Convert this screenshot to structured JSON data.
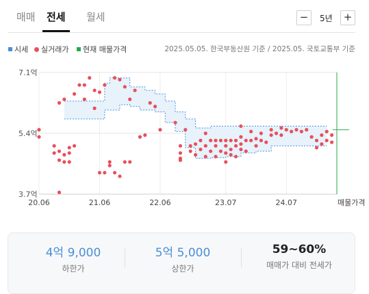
{
  "tabs": [
    {
      "label": "매매",
      "active": false
    },
    {
      "label": "전세",
      "active": true
    },
    {
      "label": "월세",
      "active": false
    }
  ],
  "period": {
    "minus": "−",
    "value": "5년",
    "plus": "+"
  },
  "legend": [
    {
      "label": "시세",
      "color": "#4a8fd6",
      "shape": "square"
    },
    {
      "label": "실거래가",
      "color": "#e8505b",
      "shape": "circle"
    },
    {
      "label": "현재 매물가격",
      "color": "#2aa84a",
      "shape": "square"
    }
  ],
  "source_text": "2025.05.05. 한국부동산원 기준 / 2025.05. 국토교통부 기준",
  "chart_data": {
    "type": "scatter",
    "title": "",
    "xlabel": "",
    "ylabel": "",
    "x_ticks": [
      "20.06",
      "21.06",
      "22.06",
      "23.07",
      "24.07"
    ],
    "x_tick_dates": [
      "2020-06",
      "2021-06",
      "2022-06",
      "2023-07",
      "2024-07"
    ],
    "current_label": "매물가격",
    "current_date": "2025-05",
    "y_ticks": [
      7.1,
      5.4,
      3.7
    ],
    "y_tick_labels": [
      "7.1억",
      "5.4억",
      "3.7억"
    ],
    "ylim": [
      3.7,
      7.1
    ],
    "grid": true,
    "band": {
      "name": "시세",
      "upper": [
        [
          "2020-11",
          6.3
        ],
        [
          "2021-06",
          6.3
        ],
        [
          "2021-07",
          6.8
        ],
        [
          "2021-08",
          6.95
        ],
        [
          "2021-11",
          6.95
        ],
        [
          "2021-12",
          6.7
        ],
        [
          "2022-03",
          6.6
        ],
        [
          "2022-05",
          6.5
        ],
        [
          "2022-07",
          6.3
        ],
        [
          "2022-09",
          6.0
        ],
        [
          "2022-11",
          5.8
        ],
        [
          "2023-01",
          5.55
        ],
        [
          "2023-04",
          5.6
        ],
        [
          "2023-07",
          5.6
        ],
        [
          "2023-10",
          5.6
        ],
        [
          "2024-01",
          5.6
        ],
        [
          "2024-04",
          5.6
        ],
        [
          "2024-07",
          5.6
        ],
        [
          "2024-10",
          5.6
        ],
        [
          "2025-03",
          5.6
        ]
      ],
      "lower": [
        [
          "2020-11",
          5.8
        ],
        [
          "2021-06",
          5.8
        ],
        [
          "2021-07",
          6.05
        ],
        [
          "2021-10",
          6.2
        ],
        [
          "2021-12",
          6.15
        ],
        [
          "2022-02",
          6.05
        ],
        [
          "2022-05",
          6.0
        ],
        [
          "2022-07",
          5.7
        ],
        [
          "2022-09",
          5.45
        ],
        [
          "2022-11",
          5.0
        ],
        [
          "2023-01",
          4.7
        ],
        [
          "2023-04",
          4.72
        ],
        [
          "2023-07",
          4.75
        ],
        [
          "2023-10",
          4.85
        ],
        [
          "2024-01",
          4.9
        ],
        [
          "2024-04",
          5.05
        ],
        [
          "2024-07",
          5.05
        ],
        [
          "2024-10",
          5.05
        ],
        [
          "2025-03",
          5.05
        ]
      ]
    },
    "points": [
      [
        "2020-06",
        5.5
      ],
      [
        "2020-06",
        5.3
      ],
      [
        "2020-09",
        5.05
      ],
      [
        "2020-09",
        4.85
      ],
      [
        "2020-10",
        6.25
      ],
      [
        "2020-10",
        4.9
      ],
      [
        "2020-10",
        4.65
      ],
      [
        "2020-10",
        3.75
      ],
      [
        "2020-11",
        6.35
      ],
      [
        "2020-11",
        4.8
      ],
      [
        "2020-11",
        4.6
      ],
      [
        "2020-12",
        5.0
      ],
      [
        "2020-12",
        4.85
      ],
      [
        "2020-12",
        4.6
      ],
      [
        "2021-01",
        5.05
      ],
      [
        "2021-01",
        6.5
      ],
      [
        "2021-02",
        6.75
      ],
      [
        "2021-03",
        6.75
      ],
      [
        "2021-03",
        6.35
      ],
      [
        "2021-04",
        6.95
      ],
      [
        "2021-05",
        6.6
      ],
      [
        "2021-05",
        6.1
      ],
      [
        "2021-06",
        6.55
      ],
      [
        "2021-06",
        4.3
      ],
      [
        "2021-07",
        6.75
      ],
      [
        "2021-07",
        4.3
      ],
      [
        "2021-08",
        4.6
      ],
      [
        "2021-08",
        4.5
      ],
      [
        "2021-09",
        6.95
      ],
      [
        "2021-09",
        4.3
      ],
      [
        "2021-10",
        6.9
      ],
      [
        "2021-10",
        4.2
      ],
      [
        "2021-11",
        6.7
      ],
      [
        "2021-11",
        4.6
      ],
      [
        "2021-12",
        6.35
      ],
      [
        "2021-12",
        4.6
      ],
      [
        "2022-01",
        6.6
      ],
      [
        "2022-02",
        5.3
      ],
      [
        "2022-03",
        5.35
      ],
      [
        "2022-04",
        6.25
      ],
      [
        "2022-05",
        6.15
      ],
      [
        "2022-06",
        5.5
      ],
      [
        "2022-09",
        5.7
      ],
      [
        "2022-10",
        5.05
      ],
      [
        "2022-10",
        4.85
      ],
      [
        "2022-10",
        4.7
      ],
      [
        "2022-10",
        4.65
      ],
      [
        "2022-11",
        5.5
      ],
      [
        "2022-12",
        5.05
      ],
      [
        "2022-12",
        4.9
      ],
      [
        "2023-01",
        5.1
      ],
      [
        "2023-01",
        4.8
      ],
      [
        "2023-02",
        5.2
      ],
      [
        "2023-02",
        4.95
      ],
      [
        "2023-03",
        5.4
      ],
      [
        "2023-03",
        5.05
      ],
      [
        "2023-03",
        4.75
      ],
      [
        "2023-04",
        5.2
      ],
      [
        "2023-04",
        4.9
      ],
      [
        "2023-05",
        5.2
      ],
      [
        "2023-05",
        5.05
      ],
      [
        "2023-05",
        4.75
      ],
      [
        "2023-06",
        5.2
      ],
      [
        "2023-06",
        4.9
      ],
      [
        "2023-07",
        5.2
      ],
      [
        "2023-07",
        5.05
      ],
      [
        "2023-07",
        4.85
      ],
      [
        "2023-07",
        4.6
      ],
      [
        "2023-08",
        5.2
      ],
      [
        "2023-08",
        4.95
      ],
      [
        "2023-08",
        4.8
      ],
      [
        "2023-09",
        5.2
      ],
      [
        "2023-09",
        5.05
      ],
      [
        "2023-09",
        4.75
      ],
      [
        "2023-10",
        5.6
      ],
      [
        "2023-10",
        5.3
      ],
      [
        "2023-10",
        5.1
      ],
      [
        "2023-10",
        4.95
      ],
      [
        "2023-11",
        5.2
      ],
      [
        "2023-11",
        4.9
      ],
      [
        "2023-12",
        5.45
      ],
      [
        "2023-12",
        5.2
      ],
      [
        "2024-01",
        5.25
      ],
      [
        "2024-01",
        5.05
      ],
      [
        "2024-02",
        5.4
      ],
      [
        "2024-02",
        5.2
      ],
      [
        "2024-03",
        5.15
      ],
      [
        "2024-04",
        5.5
      ],
      [
        "2024-04",
        5.35
      ],
      [
        "2024-05",
        5.4
      ],
      [
        "2024-06",
        5.55
      ],
      [
        "2024-06",
        5.35
      ],
      [
        "2024-07",
        5.5
      ],
      [
        "2024-08",
        5.45
      ],
      [
        "2024-09",
        5.5
      ],
      [
        "2024-10",
        5.45
      ],
      [
        "2024-11",
        5.5
      ],
      [
        "2024-12",
        5.3
      ],
      [
        "2025-01",
        5.2
      ],
      [
        "2025-01",
        5.0
      ],
      [
        "2025-02",
        5.35
      ],
      [
        "2025-02",
        5.1
      ],
      [
        "2025-03",
        5.45
      ],
      [
        "2025-03",
        5.2
      ],
      [
        "2025-04",
        5.35
      ],
      [
        "2025-04",
        5.15
      ]
    ],
    "current_price": 5.5
  },
  "summary": [
    {
      "value": "4억 9,000",
      "label": "하한가",
      "style": "blue"
    },
    {
      "value": "5억 5,000",
      "label": "상한가",
      "style": "blue"
    },
    {
      "value": "59~60%",
      "label": "매매가 대비 전세가",
      "style": "dark"
    }
  ]
}
